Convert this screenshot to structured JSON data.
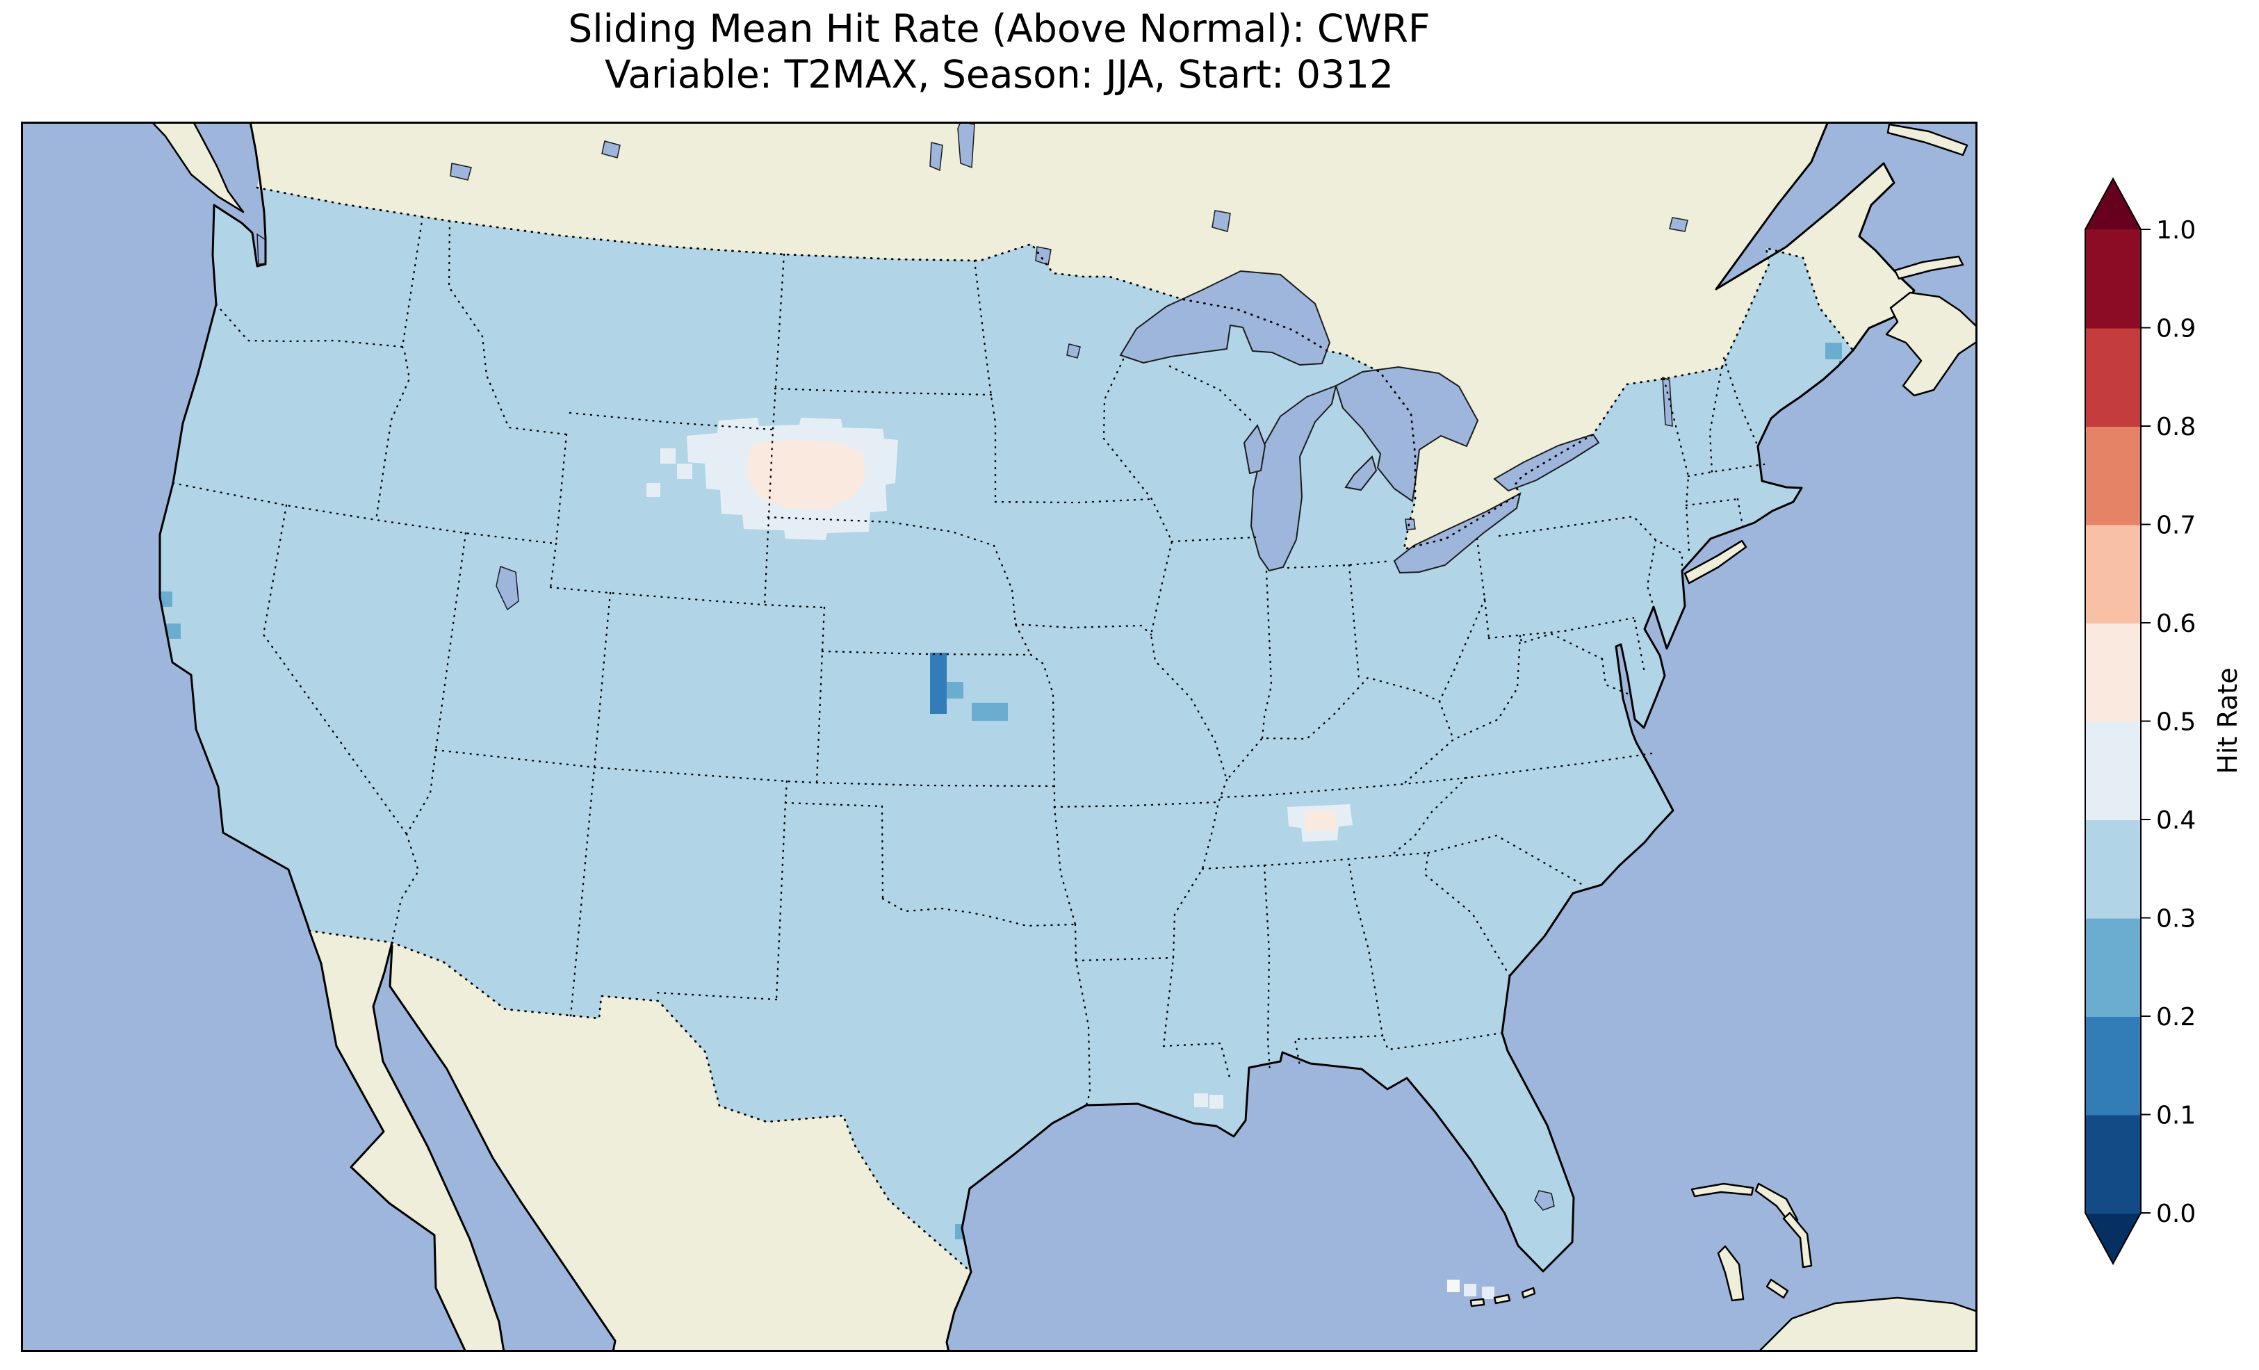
{
  "title": {
    "line1": "Sliding Mean Hit Rate (Above Normal): CWRF",
    "line2": "Variable: T2MAX, Season: JJA, Start: 0312"
  },
  "colorbar": {
    "label": "Hit Rate",
    "ticks_top_to_bottom": [
      "1.0",
      "0.9",
      "0.8",
      "0.7",
      "0.6",
      "0.5",
      "0.4",
      "0.3",
      "0.2",
      "0.1",
      "0.0"
    ],
    "range": [
      0.0,
      1.0
    ],
    "extend": "both",
    "extend_under_color": "#053061",
    "extend_over_color": "#67001f",
    "segment_colors_bottom_to_top": [
      "#134b86",
      "#327db8",
      "#6bacd1",
      "#b1d5e7",
      "#e4eef4",
      "#fae9df",
      "#f8c0a4",
      "#e58367",
      "#c43c3c",
      "#8d0c25"
    ]
  },
  "map": {
    "colors": {
      "ocean": "#9fb6dc",
      "land": "#efeeda",
      "us": "#b1d5e7",
      "lake": "#9fb6dc",
      "p45": "#e4eef4",
      "p56": "#fae9df",
      "p23": "#6bacd1",
      "p12": "#327db8"
    }
  },
  "chart_data": {
    "type": "heatmap",
    "title": "Sliding Mean Hit Rate (Above Normal): CWRF",
    "subtitle": "Variable: T2MAX, Season: JJA, Start: 0312",
    "model": "CWRF",
    "variable": "T2MAX",
    "season": "JJA",
    "start": "0312",
    "colorbar_label": "Hit Rate",
    "colorbar_ticks": [
      0.0,
      0.1,
      0.2,
      0.3,
      0.4,
      0.5,
      0.6,
      0.7,
      0.8,
      0.9,
      1.0
    ],
    "value_range": [
      0.0,
      1.0
    ],
    "colormap": "RdBu_r, discrete 0.1 bins, arrow extensions on both ends",
    "map_extent": "Contiguous United States with surrounding Canada, Mexico, Atlantic and Pacific (Lambert-conformal-style projection)",
    "regions": [
      {
        "region": "Most of the contiguous US",
        "hit_rate_bin": "0.3–0.4"
      },
      {
        "region": "NE Wyoming / W Nebraska / SW South Dakota patch",
        "hit_rate_bin": "0.4–0.6"
      },
      {
        "region": "SW Nebraska / NW Kansas / E Colorado pocket",
        "hit_rate_bin": "0.1–0.3"
      },
      {
        "region": "Central Tennessee pocket",
        "hit_rate_bin": "0.4–0.6"
      },
      {
        "region": "Coastal Maine cells",
        "hit_rate_bin": "0.1–0.3"
      },
      {
        "region": "Northern California coastal cells",
        "hit_rate_bin": "0.2–0.3"
      },
      {
        "region": "South Texas coastal cell",
        "hit_rate_bin": "0.2–0.3"
      },
      {
        "region": "Cells near the Florida Keys",
        "hit_rate_bin": "0.4–0.6"
      }
    ]
  }
}
